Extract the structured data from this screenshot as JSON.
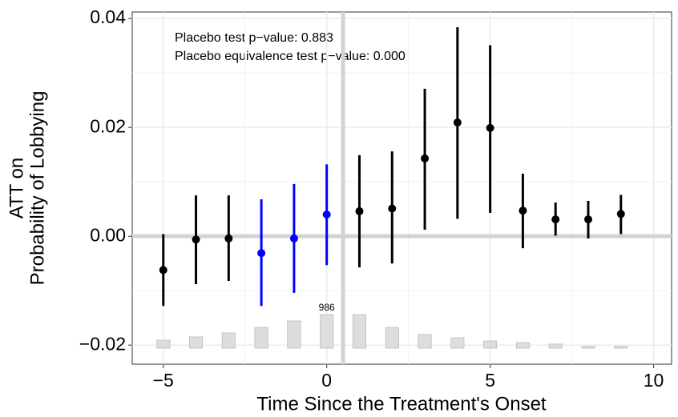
{
  "chart_data": {
    "type": "errorbar",
    "annotations": [
      "Placebo test p−value: 0.883",
      "Placebo equivalence test p−value: 0.000"
    ],
    "x_label": "Time Since the Treatment's Onset",
    "y_label": [
      "ATT on",
      "Probability of Lobbying"
    ],
    "x": [
      -5,
      -4,
      -3,
      -2,
      -1,
      0,
      1,
      2,
      3,
      4,
      5,
      6,
      7,
      8,
      9
    ],
    "values": [
      -0.0062,
      -0.0006,
      -0.0004,
      -0.0031,
      -0.0004,
      0.004,
      0.0046,
      0.0051,
      0.0143,
      0.0209,
      0.0199,
      0.0047,
      0.0031,
      0.0031,
      0.0041
    ],
    "ci_lower": [
      -0.0128,
      -0.0088,
      -0.0082,
      -0.0128,
      -0.0104,
      -0.0053,
      -0.0057,
      -0.005,
      0.0012,
      0.0032,
      0.0043,
      -0.0022,
      0.0001,
      -0.0004,
      0.0004
    ],
    "ci_upper": [
      0.0004,
      0.0075,
      0.0075,
      0.0068,
      0.0096,
      0.0132,
      0.0149,
      0.0156,
      0.0271,
      0.0384,
      0.0351,
      0.0115,
      0.0062,
      0.0065,
      0.0076
    ],
    "colors": [
      "#000000",
      "#000000",
      "#000000",
      "#0000ff",
      "#0000ff",
      "#0000ff",
      "#000000",
      "#000000",
      "#000000",
      "#000000",
      "#000000",
      "#000000",
      "#000000",
      "#000000",
      "#000000"
    ],
    "counts": [
      235,
      330,
      446,
      610,
      798,
      986,
      986,
      610,
      400,
      305,
      210,
      165,
      120,
      50,
      50
    ],
    "count_labels": [
      null,
      null,
      null,
      null,
      null,
      "986",
      null,
      null,
      null,
      null,
      null,
      null,
      null,
      null,
      null
    ],
    "count_color": "#dddddd",
    "vline": 0.5,
    "hline": 0,
    "ref_color": "#d3d3d3",
    "xlim": [
      -5.95,
      10.55
    ],
    "ylim": [
      -0.0235,
      0.0412
    ],
    "xticks": [
      -5,
      0,
      5,
      10
    ],
    "x_tick_labels": [
      "−5",
      "0",
      "5",
      "10"
    ],
    "yticks": [
      {
        "value": -0.02,
        "label": "−0.02"
      },
      {
        "value": 0,
        "label": "0.00"
      },
      {
        "value": 0.02,
        "label": "0.02"
      },
      {
        "value": 0.04,
        "label": "0.04"
      }
    ],
    "minor_xticks": [
      -2.5,
      2.5,
      7.5
    ],
    "minor_yticks": [
      -0.01,
      0.01,
      0.03
    ],
    "grid": true
  }
}
